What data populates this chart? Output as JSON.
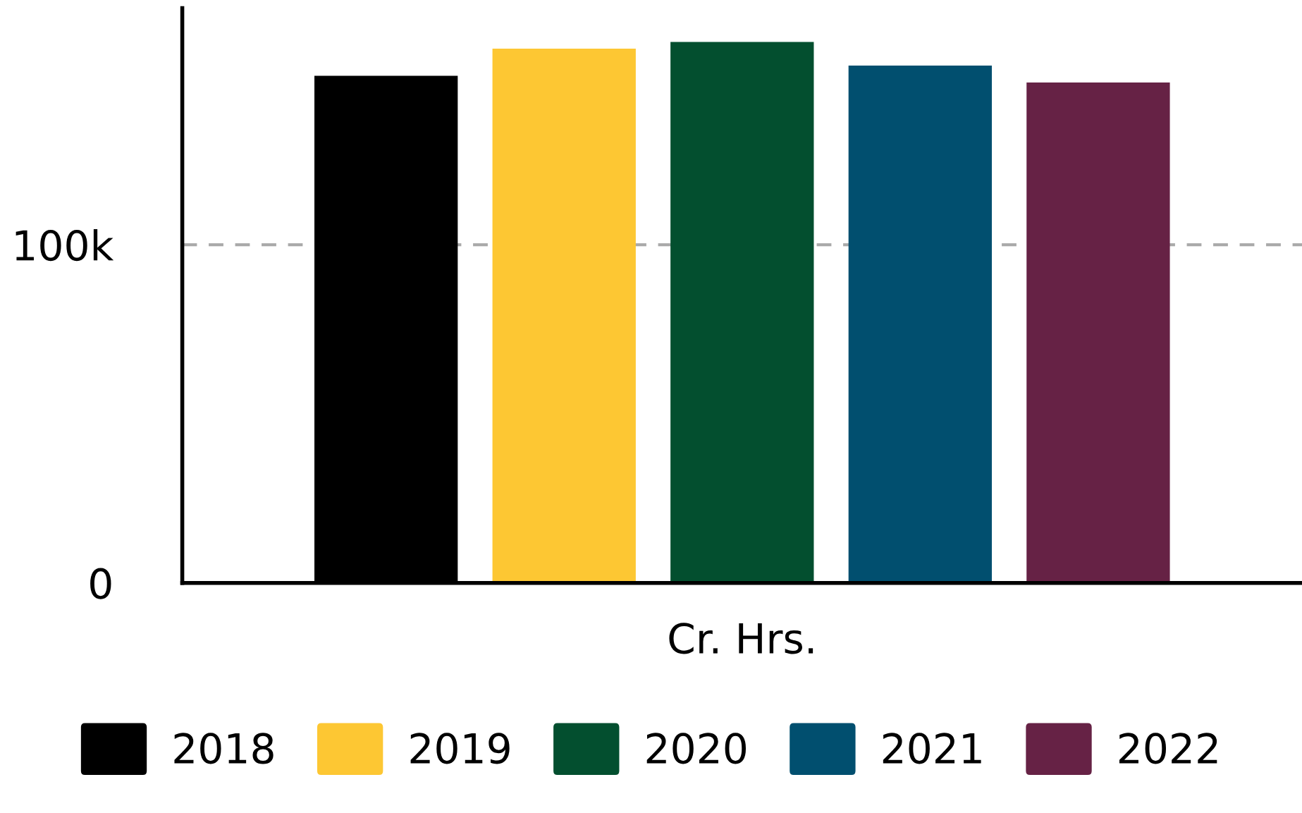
{
  "chart_data": {
    "type": "bar",
    "categories": [
      "Cr. Hrs."
    ],
    "series": [
      {
        "name": "2018",
        "color": "#000000",
        "values": [
          150000
        ]
      },
      {
        "name": "2019",
        "color": "#fdc733",
        "values": [
          158000
        ]
      },
      {
        "name": "2020",
        "color": "#034f2f",
        "values": [
          160000
        ]
      },
      {
        "name": "2021",
        "color": "#014f6f",
        "values": [
          153000
        ]
      },
      {
        "name": "2022",
        "color": "#662245",
        "values": [
          148000
        ]
      }
    ],
    "ylim": [
      0,
      170000
    ],
    "yticks": [
      0,
      {
        "value": 100000,
        "label": "100k"
      }
    ],
    "grid": "y",
    "legend": "bottom"
  }
}
